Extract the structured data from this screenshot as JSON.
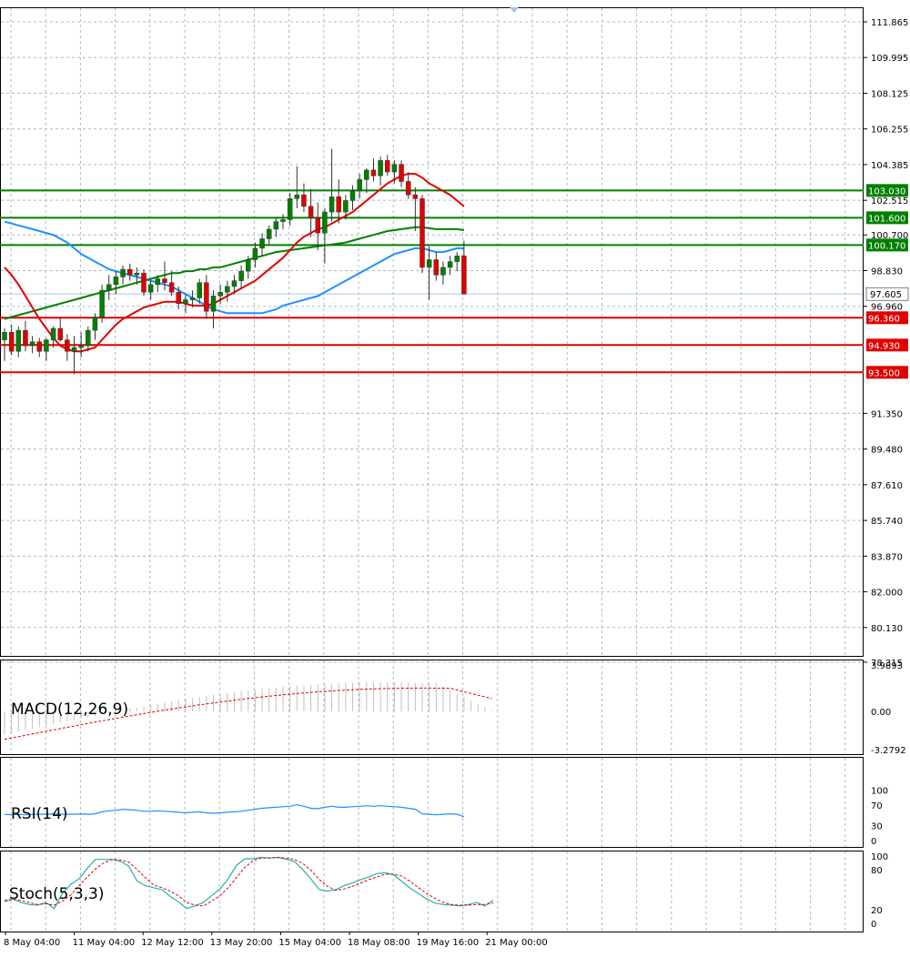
{
  "chart_data": {
    "type": "candlestick",
    "grid": true,
    "price_axis": {
      "ticks": [
        "111.865",
        "109.995",
        "108.125",
        "106.255",
        "104.385",
        "102.515",
        "100.700",
        "98.830",
        "96.960",
        "91.350",
        "89.480",
        "87.610",
        "85.740",
        "83.870",
        "82.000",
        "80.130",
        "78.315"
      ],
      "tick_values": [
        111.865,
        109.995,
        108.125,
        106.255,
        104.385,
        102.515,
        100.7,
        98.83,
        96.96,
        91.35,
        89.48,
        87.61,
        85.74,
        83.87,
        82.0,
        80.13,
        78.315
      ],
      "current_price": 97.605,
      "current_price_label": "97.605"
    },
    "x_axis": {
      "labels": [
        "8 May 04:00",
        "11 May 04:00",
        "12 May 12:00",
        "13 May 20:00",
        "15 May 04:00",
        "18 May 08:00",
        "19 May 16:00",
        "21 May 00:00"
      ],
      "label_bar_index": [
        0,
        10,
        20,
        30,
        40,
        50,
        60,
        70
      ]
    },
    "levels": [
      {
        "value": 103.03,
        "label": "103.030",
        "color": "#008000"
      },
      {
        "value": 101.6,
        "label": "101.600",
        "color": "#008000"
      },
      {
        "value": 100.17,
        "label": "100.170",
        "color": "#008000"
      },
      {
        "value": 96.36,
        "label": "96.360",
        "color": "#e00000"
      },
      {
        "value": 94.93,
        "label": "94.930",
        "color": "#e00000"
      },
      {
        "value": 93.5,
        "label": "93.500",
        "color": "#e00000"
      }
    ],
    "candles": [
      [
        95.2,
        95.8,
        94.1,
        95.6
      ],
      [
        95.6,
        96.0,
        94.4,
        94.6
      ],
      [
        94.6,
        95.9,
        94.3,
        95.7
      ],
      [
        95.7,
        96.2,
        94.6,
        94.9
      ],
      [
        94.9,
        95.4,
        94.5,
        95.1
      ],
      [
        95.1,
        95.3,
        94.3,
        94.6
      ],
      [
        94.6,
        95.3,
        94.1,
        95.2
      ],
      [
        95.2,
        95.9,
        94.8,
        95.8
      ],
      [
        95.8,
        96.4,
        95.1,
        95.2
      ],
      [
        95.2,
        95.5,
        94.1,
        94.6
      ],
      [
        94.6,
        95.4,
        93.4,
        94.8
      ],
      [
        94.8,
        95.6,
        94.3,
        94.9
      ],
      [
        94.9,
        95.9,
        94.6,
        95.7
      ],
      [
        95.7,
        96.6,
        95.2,
        96.4
      ],
      [
        96.4,
        98.1,
        96.1,
        97.8
      ],
      [
        97.8,
        98.6,
        97.3,
        98.1
      ],
      [
        98.1,
        98.8,
        97.6,
        98.5
      ],
      [
        98.5,
        99.1,
        98.1,
        98.9
      ],
      [
        98.9,
        99.2,
        98.3,
        98.6
      ],
      [
        98.6,
        99.0,
        98.1,
        98.7
      ],
      [
        98.7,
        98.9,
        97.5,
        97.7
      ],
      [
        97.7,
        98.3,
        97.3,
        98.1
      ],
      [
        98.1,
        98.6,
        97.7,
        98.4
      ],
      [
        98.4,
        99.3,
        97.8,
        98.2
      ],
      [
        98.2,
        98.8,
        97.5,
        97.7
      ],
      [
        97.7,
        98.0,
        96.8,
        97.1
      ],
      [
        97.1,
        97.6,
        96.6,
        97.3
      ],
      [
        97.3,
        97.8,
        96.9,
        97.4
      ],
      [
        97.4,
        98.4,
        97.1,
        98.2
      ],
      [
        98.2,
        98.6,
        96.3,
        96.7
      ],
      [
        96.7,
        97.8,
        95.8,
        97.5
      ],
      [
        97.5,
        98.1,
        97.1,
        97.7
      ],
      [
        97.7,
        98.3,
        97.2,
        98.0
      ],
      [
        98.0,
        98.6,
        97.6,
        98.3
      ],
      [
        98.3,
        99.1,
        97.9,
        98.8
      ],
      [
        98.8,
        99.6,
        98.4,
        99.4
      ],
      [
        99.4,
        100.3,
        99.0,
        100.0
      ],
      [
        100.0,
        100.8,
        99.6,
        100.5
      ],
      [
        100.5,
        101.2,
        100.2,
        101.0
      ],
      [
        101.0,
        101.6,
        100.6,
        101.4
      ],
      [
        101.4,
        101.8,
        101.0,
        101.5
      ],
      [
        101.5,
        102.9,
        101.2,
        102.6
      ],
      [
        102.6,
        104.3,
        102.1,
        102.8
      ],
      [
        102.8,
        103.4,
        101.9,
        102.2
      ],
      [
        102.2,
        103.1,
        100.6,
        101.6
      ],
      [
        101.6,
        102.4,
        99.9,
        100.8
      ],
      [
        100.8,
        102.1,
        99.2,
        101.9
      ],
      [
        101.9,
        105.2,
        101.4,
        102.7
      ],
      [
        102.7,
        103.6,
        101.3,
        101.9
      ],
      [
        101.9,
        102.8,
        101.5,
        102.5
      ],
      [
        102.5,
        103.3,
        102.0,
        103.0
      ],
      [
        103.0,
        103.9,
        102.6,
        103.6
      ],
      [
        103.6,
        104.2,
        102.9,
        104.1
      ],
      [
        104.1,
        104.7,
        103.5,
        103.8
      ],
      [
        103.8,
        104.8,
        103.3,
        104.6
      ],
      [
        104.6,
        104.9,
        103.8,
        104.0
      ],
      [
        104.0,
        104.6,
        103.4,
        104.4
      ],
      [
        104.4,
        104.6,
        103.2,
        103.5
      ],
      [
        103.5,
        104.0,
        102.6,
        102.8
      ],
      [
        102.8,
        103.2,
        100.9,
        102.6
      ],
      [
        102.6,
        102.8,
        98.7,
        99.0
      ],
      [
        99.0,
        100.1,
        97.3,
        99.4
      ],
      [
        99.4,
        99.8,
        98.3,
        98.6
      ],
      [
        98.6,
        99.3,
        98.1,
        99.0
      ],
      [
        99.0,
        99.6,
        98.6,
        99.3
      ],
      [
        99.3,
        99.8,
        98.8,
        99.6
      ],
      [
        99.6,
        100.4,
        97.6,
        97.6
      ]
    ],
    "moving_averages": [
      {
        "color": "#1e90ff",
        "values": [
          101.4,
          101.3,
          101.2,
          101.1,
          101.0,
          100.9,
          100.8,
          100.7,
          100.5,
          100.3,
          100.0,
          99.7,
          99.5,
          99.3,
          99.1,
          98.9,
          98.8,
          98.7,
          98.6,
          98.5,
          98.4,
          98.3,
          98.2,
          98.1,
          98.0,
          97.8,
          97.6,
          97.4,
          97.2,
          97.0,
          96.8,
          96.7,
          96.6,
          96.6,
          96.6,
          96.6,
          96.6,
          96.6,
          96.7,
          96.8,
          97.0,
          97.1,
          97.2,
          97.3,
          97.4,
          97.5,
          97.7,
          97.9,
          98.1,
          98.3,
          98.5,
          98.7,
          98.9,
          99.1,
          99.3,
          99.5,
          99.7,
          99.8,
          99.9,
          100.0,
          100.0,
          99.9,
          99.8,
          99.8,
          99.9,
          100.0,
          100.0
        ]
      },
      {
        "color": "#008000",
        "values": [
          96.3,
          96.4,
          96.5,
          96.6,
          96.7,
          96.8,
          96.9,
          97.0,
          97.1,
          97.2,
          97.3,
          97.4,
          97.5,
          97.6,
          97.7,
          97.8,
          97.9,
          98.0,
          98.1,
          98.2,
          98.3,
          98.4,
          98.5,
          98.6,
          98.7,
          98.7,
          98.8,
          98.8,
          98.9,
          98.9,
          99.0,
          99.0,
          99.1,
          99.2,
          99.3,
          99.4,
          99.5,
          99.6,
          99.7,
          99.8,
          99.85,
          99.9,
          99.95,
          100.0,
          100.05,
          100.1,
          100.15,
          100.2,
          100.25,
          100.3,
          100.4,
          100.5,
          100.6,
          100.7,
          100.8,
          100.9,
          100.95,
          101.0,
          101.05,
          101.1,
          101.1,
          101.05,
          101.0,
          101.0,
          101.0,
          101.0,
          100.95
        ]
      },
      {
        "color": "#e00000",
        "values": [
          99.0,
          98.6,
          98.1,
          97.5,
          96.9,
          96.3,
          95.8,
          95.3,
          94.9,
          94.7,
          94.6,
          94.6,
          94.7,
          94.8,
          95.2,
          95.6,
          96.0,
          96.3,
          96.5,
          96.7,
          96.9,
          97.0,
          97.1,
          97.2,
          97.2,
          97.2,
          97.1,
          97.0,
          97.0,
          97.0,
          97.1,
          97.3,
          97.5,
          97.7,
          97.9,
          98.1,
          98.3,
          98.6,
          98.9,
          99.2,
          99.5,
          99.9,
          100.3,
          100.6,
          100.8,
          101.0,
          101.1,
          101.3,
          101.5,
          101.7,
          101.9,
          102.2,
          102.5,
          102.8,
          103.1,
          103.4,
          103.6,
          103.8,
          103.9,
          103.9,
          103.7,
          103.4,
          103.2,
          103.0,
          102.8,
          102.5,
          102.2
        ]
      }
    ],
    "indicators": [
      {
        "label": "MACD(12,26,9)",
        "ticks": [
          "3.9893",
          "0.00",
          "-3.2792"
        ],
        "tick_values": [
          3.9893,
          0.0,
          -3.2792
        ]
      },
      {
        "label": "RSI(14)",
        "ticks": [
          "100",
          "70",
          "30",
          "0"
        ],
        "tick_values": [
          100,
          70,
          30,
          0
        ]
      },
      {
        "label": "Stoch(5,3,3)",
        "ticks": [
          "100",
          "80",
          "20",
          "0"
        ],
        "tick_values": [
          100,
          80,
          20,
          0
        ]
      }
    ],
    "rsi_values": [
      52,
      51,
      52,
      51,
      52,
      52,
      52,
      53,
      52,
      52,
      52,
      53,
      52,
      53,
      57,
      59,
      60,
      62,
      61,
      60,
      58,
      58,
      59,
      58,
      57,
      56,
      55,
      56,
      57,
      55,
      54,
      55,
      56,
      57,
      58,
      60,
      62,
      64,
      65,
      66,
      67,
      68,
      71,
      68,
      64,
      63,
      66,
      68,
      66,
      66,
      67,
      68,
      69,
      68,
      69,
      68,
      67,
      66,
      64,
      62,
      53,
      52,
      51,
      52,
      53,
      52,
      47
    ],
    "stoch_main": [
      32,
      36,
      31,
      28,
      27,
      31,
      22,
      45,
      58,
      66,
      82,
      95,
      95,
      95,
      92,
      85,
      63,
      56,
      53,
      50,
      40,
      32,
      22,
      26,
      31,
      41,
      51,
      66,
      86,
      96,
      96,
      98,
      97,
      98,
      95,
      92,
      80,
      66,
      50,
      48,
      50,
      56,
      60,
      65,
      69,
      74,
      75,
      72,
      62,
      52,
      44,
      36,
      30,
      28,
      27,
      26,
      28,
      31,
      26,
      34
    ],
    "stoch_signal": [
      34,
      36,
      34,
      31,
      28,
      29,
      27,
      33,
      42,
      56,
      69,
      81,
      90,
      95,
      94,
      91,
      80,
      68,
      57,
      53,
      48,
      41,
      31,
      27,
      26,
      33,
      41,
      53,
      68,
      83,
      93,
      97,
      97,
      98,
      97,
      95,
      89,
      79,
      65,
      55,
      49,
      51,
      55,
      60,
      65,
      69,
      73,
      73,
      70,
      62,
      53,
      44,
      37,
      31,
      28,
      27,
      27,
      28,
      28,
      30
    ]
  }
}
